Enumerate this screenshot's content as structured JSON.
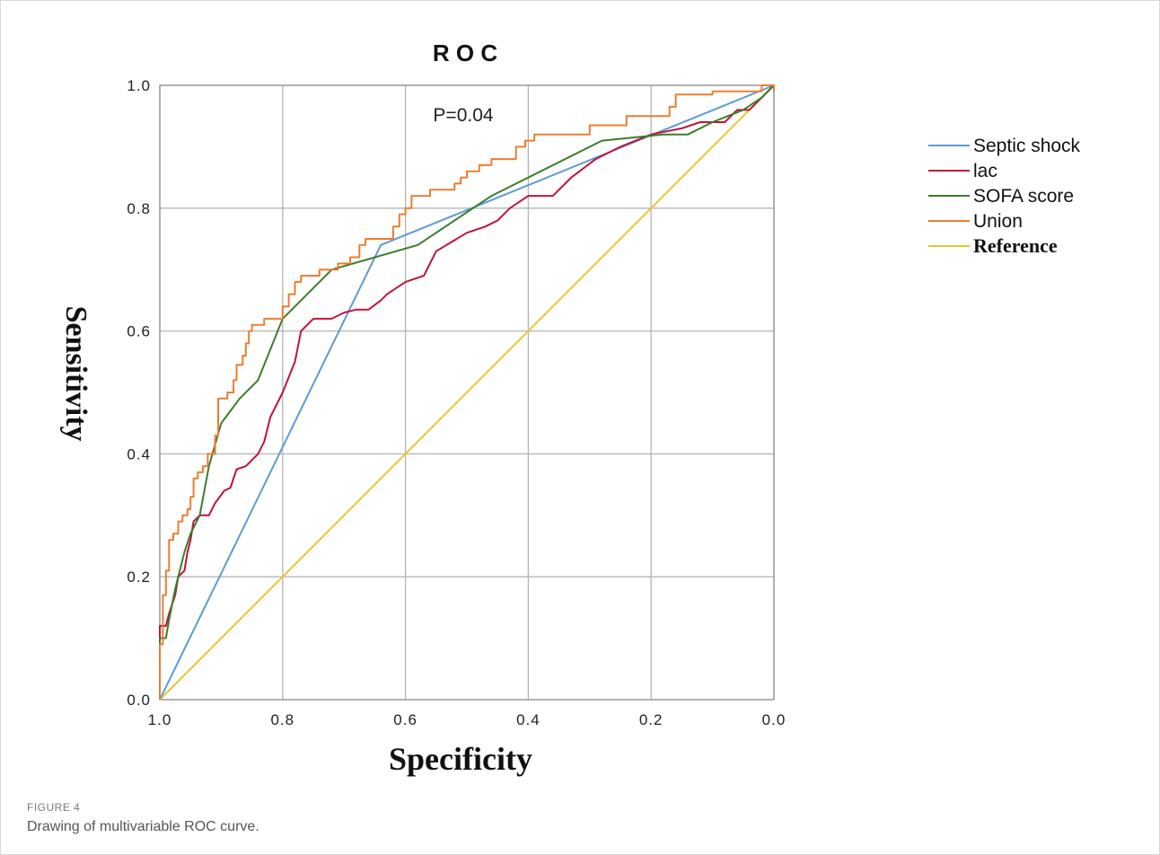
{
  "chart_data": {
    "type": "line",
    "title": "R O C",
    "annotation": "P=0.04",
    "xlabel": "Specificity",
    "ylabel": "Sensitivity",
    "xlim": [
      1.0,
      0.0
    ],
    "ylim": [
      0.0,
      1.0
    ],
    "x_reversed": true,
    "xticks": [
      "1.0",
      "0.8",
      "0.6",
      "0.4",
      "0.2",
      "0.0"
    ],
    "yticks": [
      "0.0",
      "0.2",
      "0.4",
      "0.6",
      "0.8",
      "1.0"
    ],
    "grid": true,
    "legend_position": "right",
    "series": [
      {
        "name": "Septic shock",
        "color": "#5b9bd5",
        "points": [
          [
            1.0,
            0.0
          ],
          [
            0.64,
            0.74
          ],
          [
            0.0,
            1.0
          ]
        ]
      },
      {
        "name": "lac",
        "color": "#c0143c",
        "points": [
          [
            1.0,
            0.0
          ],
          [
            1.0,
            0.12
          ],
          [
            0.99,
            0.12
          ],
          [
            0.985,
            0.14
          ],
          [
            0.975,
            0.17
          ],
          [
            0.97,
            0.2
          ],
          [
            0.96,
            0.21
          ],
          [
            0.955,
            0.24
          ],
          [
            0.95,
            0.26
          ],
          [
            0.945,
            0.29
          ],
          [
            0.935,
            0.3
          ],
          [
            0.92,
            0.3
          ],
          [
            0.91,
            0.32
          ],
          [
            0.895,
            0.34
          ],
          [
            0.885,
            0.345
          ],
          [
            0.875,
            0.375
          ],
          [
            0.86,
            0.38
          ],
          [
            0.84,
            0.4
          ],
          [
            0.83,
            0.42
          ],
          [
            0.82,
            0.46
          ],
          [
            0.8,
            0.5
          ],
          [
            0.78,
            0.55
          ],
          [
            0.77,
            0.6
          ],
          [
            0.75,
            0.62
          ],
          [
            0.72,
            0.62
          ],
          [
            0.7,
            0.63
          ],
          [
            0.68,
            0.635
          ],
          [
            0.66,
            0.635
          ],
          [
            0.64,
            0.65
          ],
          [
            0.63,
            0.66
          ],
          [
            0.6,
            0.68
          ],
          [
            0.57,
            0.69
          ],
          [
            0.55,
            0.73
          ],
          [
            0.5,
            0.76
          ],
          [
            0.47,
            0.77
          ],
          [
            0.45,
            0.78
          ],
          [
            0.43,
            0.8
          ],
          [
            0.4,
            0.82
          ],
          [
            0.36,
            0.82
          ],
          [
            0.33,
            0.85
          ],
          [
            0.29,
            0.88
          ],
          [
            0.25,
            0.9
          ],
          [
            0.2,
            0.92
          ],
          [
            0.15,
            0.93
          ],
          [
            0.12,
            0.94
          ],
          [
            0.08,
            0.94
          ],
          [
            0.06,
            0.96
          ],
          [
            0.04,
            0.96
          ],
          [
            0.02,
            0.98
          ],
          [
            0.0,
            1.0
          ]
        ]
      },
      {
        "name": "SOFA score",
        "color": "#3b7d2b",
        "points": [
          [
            1.0,
            0.0
          ],
          [
            1.0,
            0.1
          ],
          [
            0.99,
            0.1
          ],
          [
            0.985,
            0.13
          ],
          [
            0.975,
            0.18
          ],
          [
            0.96,
            0.24
          ],
          [
            0.95,
            0.27
          ],
          [
            0.935,
            0.3
          ],
          [
            0.92,
            0.38
          ],
          [
            0.9,
            0.45
          ],
          [
            0.87,
            0.49
          ],
          [
            0.84,
            0.52
          ],
          [
            0.8,
            0.62
          ],
          [
            0.72,
            0.7
          ],
          [
            0.58,
            0.74
          ],
          [
            0.46,
            0.82
          ],
          [
            0.28,
            0.91
          ],
          [
            0.18,
            0.92
          ],
          [
            0.14,
            0.92
          ],
          [
            0.1,
            0.94
          ],
          [
            0.05,
            0.96
          ],
          [
            0.02,
            0.98
          ],
          [
            0.0,
            1.0
          ]
        ]
      },
      {
        "name": "Union",
        "color": "#ed7d31",
        "points": [
          [
            1.0,
            0.0
          ],
          [
            1.0,
            0.09
          ],
          [
            0.995,
            0.09
          ],
          [
            0.995,
            0.17
          ],
          [
            0.99,
            0.17
          ],
          [
            0.99,
            0.21
          ],
          [
            0.985,
            0.21
          ],
          [
            0.985,
            0.26
          ],
          [
            0.978,
            0.26
          ],
          [
            0.978,
            0.27
          ],
          [
            0.97,
            0.27
          ],
          [
            0.97,
            0.29
          ],
          [
            0.963,
            0.29
          ],
          [
            0.963,
            0.3
          ],
          [
            0.955,
            0.3
          ],
          [
            0.955,
            0.31
          ],
          [
            0.95,
            0.31
          ],
          [
            0.95,
            0.33
          ],
          [
            0.945,
            0.33
          ],
          [
            0.945,
            0.36
          ],
          [
            0.938,
            0.36
          ],
          [
            0.938,
            0.37
          ],
          [
            0.93,
            0.37
          ],
          [
            0.93,
            0.38
          ],
          [
            0.922,
            0.38
          ],
          [
            0.922,
            0.4
          ],
          [
            0.91,
            0.4
          ],
          [
            0.91,
            0.43
          ],
          [
            0.905,
            0.43
          ],
          [
            0.905,
            0.49
          ],
          [
            0.89,
            0.49
          ],
          [
            0.89,
            0.5
          ],
          [
            0.88,
            0.5
          ],
          [
            0.88,
            0.52
          ],
          [
            0.875,
            0.52
          ],
          [
            0.875,
            0.545
          ],
          [
            0.865,
            0.545
          ],
          [
            0.865,
            0.56
          ],
          [
            0.86,
            0.56
          ],
          [
            0.86,
            0.58
          ],
          [
            0.855,
            0.58
          ],
          [
            0.855,
            0.6
          ],
          [
            0.85,
            0.6
          ],
          [
            0.85,
            0.61
          ],
          [
            0.83,
            0.61
          ],
          [
            0.83,
            0.62
          ],
          [
            0.8,
            0.62
          ],
          [
            0.8,
            0.64
          ],
          [
            0.79,
            0.64
          ],
          [
            0.79,
            0.66
          ],
          [
            0.78,
            0.66
          ],
          [
            0.78,
            0.68
          ],
          [
            0.77,
            0.68
          ],
          [
            0.77,
            0.69
          ],
          [
            0.74,
            0.69
          ],
          [
            0.74,
            0.7
          ],
          [
            0.71,
            0.7
          ],
          [
            0.71,
            0.71
          ],
          [
            0.69,
            0.71
          ],
          [
            0.69,
            0.72
          ],
          [
            0.675,
            0.72
          ],
          [
            0.675,
            0.74
          ],
          [
            0.665,
            0.74
          ],
          [
            0.665,
            0.75
          ],
          [
            0.62,
            0.75
          ],
          [
            0.62,
            0.77
          ],
          [
            0.61,
            0.77
          ],
          [
            0.61,
            0.79
          ],
          [
            0.6,
            0.79
          ],
          [
            0.6,
            0.8
          ],
          [
            0.59,
            0.8
          ],
          [
            0.59,
            0.82
          ],
          [
            0.56,
            0.82
          ],
          [
            0.56,
            0.83
          ],
          [
            0.52,
            0.83
          ],
          [
            0.52,
            0.84
          ],
          [
            0.51,
            0.84
          ],
          [
            0.51,
            0.85
          ],
          [
            0.5,
            0.85
          ],
          [
            0.5,
            0.86
          ],
          [
            0.48,
            0.86
          ],
          [
            0.48,
            0.87
          ],
          [
            0.46,
            0.87
          ],
          [
            0.46,
            0.88
          ],
          [
            0.42,
            0.88
          ],
          [
            0.42,
            0.9
          ],
          [
            0.405,
            0.9
          ],
          [
            0.405,
            0.91
          ],
          [
            0.39,
            0.91
          ],
          [
            0.39,
            0.92
          ],
          [
            0.3,
            0.92
          ],
          [
            0.3,
            0.935
          ],
          [
            0.24,
            0.935
          ],
          [
            0.24,
            0.95
          ],
          [
            0.17,
            0.95
          ],
          [
            0.17,
            0.965
          ],
          [
            0.16,
            0.965
          ],
          [
            0.16,
            0.985
          ],
          [
            0.1,
            0.985
          ],
          [
            0.1,
            0.99
          ],
          [
            0.02,
            0.99
          ],
          [
            0.02,
            1.0
          ],
          [
            0.0,
            1.0
          ],
          [
            0.0,
            0.99
          ]
        ]
      },
      {
        "name": "Reference",
        "color": "#e6c82e",
        "points": [
          [
            1.0,
            0.0
          ],
          [
            0.0,
            1.0
          ]
        ]
      }
    ]
  },
  "figure": {
    "label": "FIGURE 4",
    "caption": "Drawing of multivariable ROC curve."
  }
}
